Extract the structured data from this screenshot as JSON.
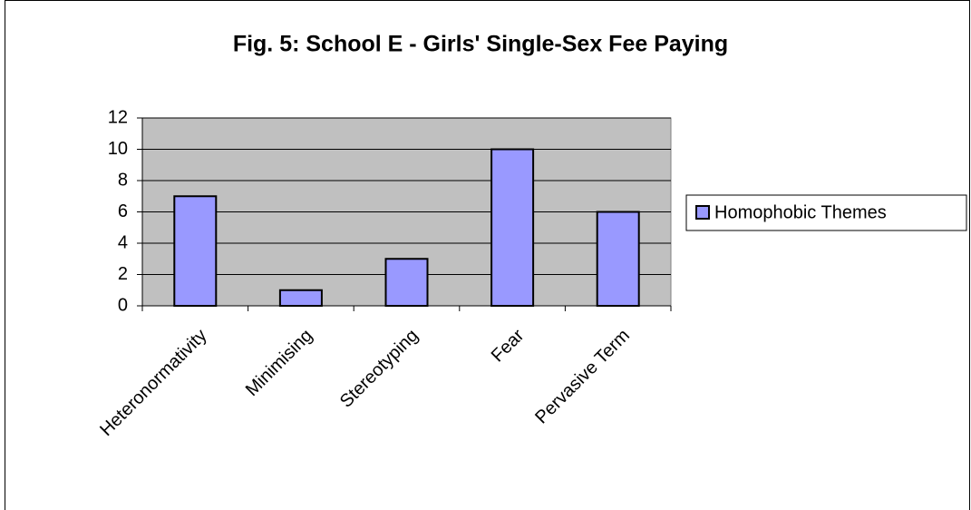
{
  "chart_data": {
    "type": "bar",
    "title": "Fig. 5: School E - Girls' Single-Sex Fee Paying",
    "categories": [
      "Heteronormativity",
      "Minimising",
      "Stereotyping",
      "Fear",
      "Pervasive Term"
    ],
    "series": [
      {
        "name": "Homophobic Themes",
        "color": "#9999ff",
        "values": [
          7,
          1,
          3,
          10,
          6
        ]
      }
    ],
    "ylim": [
      0,
      12
    ],
    "yticks": [
      0,
      2,
      4,
      6,
      8,
      10,
      12
    ],
    "grid": true,
    "legend": "right"
  }
}
